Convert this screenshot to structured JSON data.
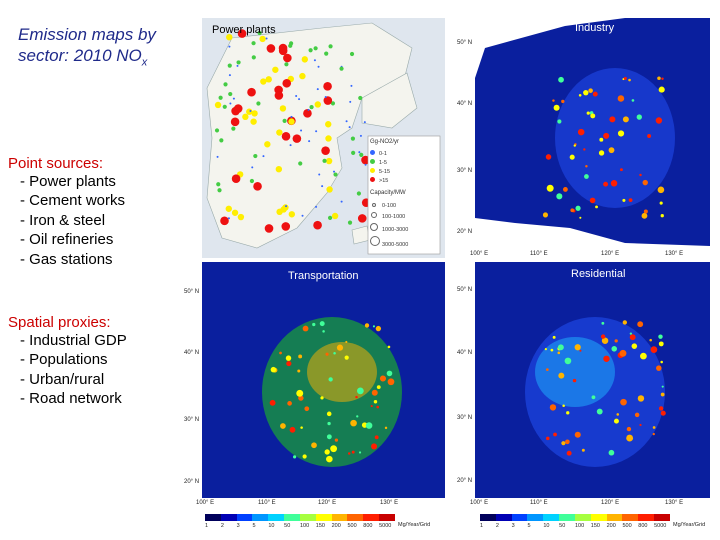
{
  "title": {
    "main": "Emission maps by sector: 2010 NO",
    "sub": "x"
  },
  "point_sources": {
    "heading": "Point sources:",
    "items": [
      "- Power plants",
      "- Cement works",
      "- Iron & steel",
      "- Oil refineries",
      "- Gas stations"
    ]
  },
  "spatial_proxies": {
    "heading": "Spatial proxies:",
    "items": [
      "- Industrial GDP",
      "- Populations",
      "- Urban/rural",
      "- Road network"
    ]
  },
  "maps": {
    "power_plants": {
      "label": "Power plants",
      "legend_emission_title": "Gg-NO2/yr",
      "legend_emission": [
        "0-1",
        "1-5",
        "5-15",
        ">15"
      ],
      "legend_capacity_title": "Capacity/MW",
      "legend_capacity": [
        "0-100",
        "100-1000",
        "1000-3000",
        "3000-5000"
      ]
    },
    "industry": {
      "label": "Industry"
    },
    "transportation": {
      "label": "Transportation"
    },
    "residential": {
      "label": "Residential"
    }
  },
  "axes": {
    "lat": [
      "50° N",
      "40° N",
      "30° N",
      "20° N"
    ],
    "lon": [
      "100° E",
      "110° E",
      "120° E",
      "130° E"
    ]
  },
  "legend_scale": {
    "values": [
      "1",
      "2",
      "3",
      "5",
      "10",
      "50",
      "100",
      "150",
      "200",
      "500",
      "800",
      "5000"
    ],
    "unit": "Mg/Year/Grid",
    "colors": [
      "#00005a",
      "#0000b4",
      "#0040ff",
      "#0096ff",
      "#00d2ff",
      "#40ff9a",
      "#a6ff40",
      "#ffff00",
      "#ffb400",
      "#ff6400",
      "#ff1e00",
      "#c80000"
    ]
  },
  "colors": {
    "title": "#1f2a8a",
    "heading": "#cc0000",
    "map_bg": "#0a1f9e",
    "map_bg_light": "#1a3fd6"
  }
}
